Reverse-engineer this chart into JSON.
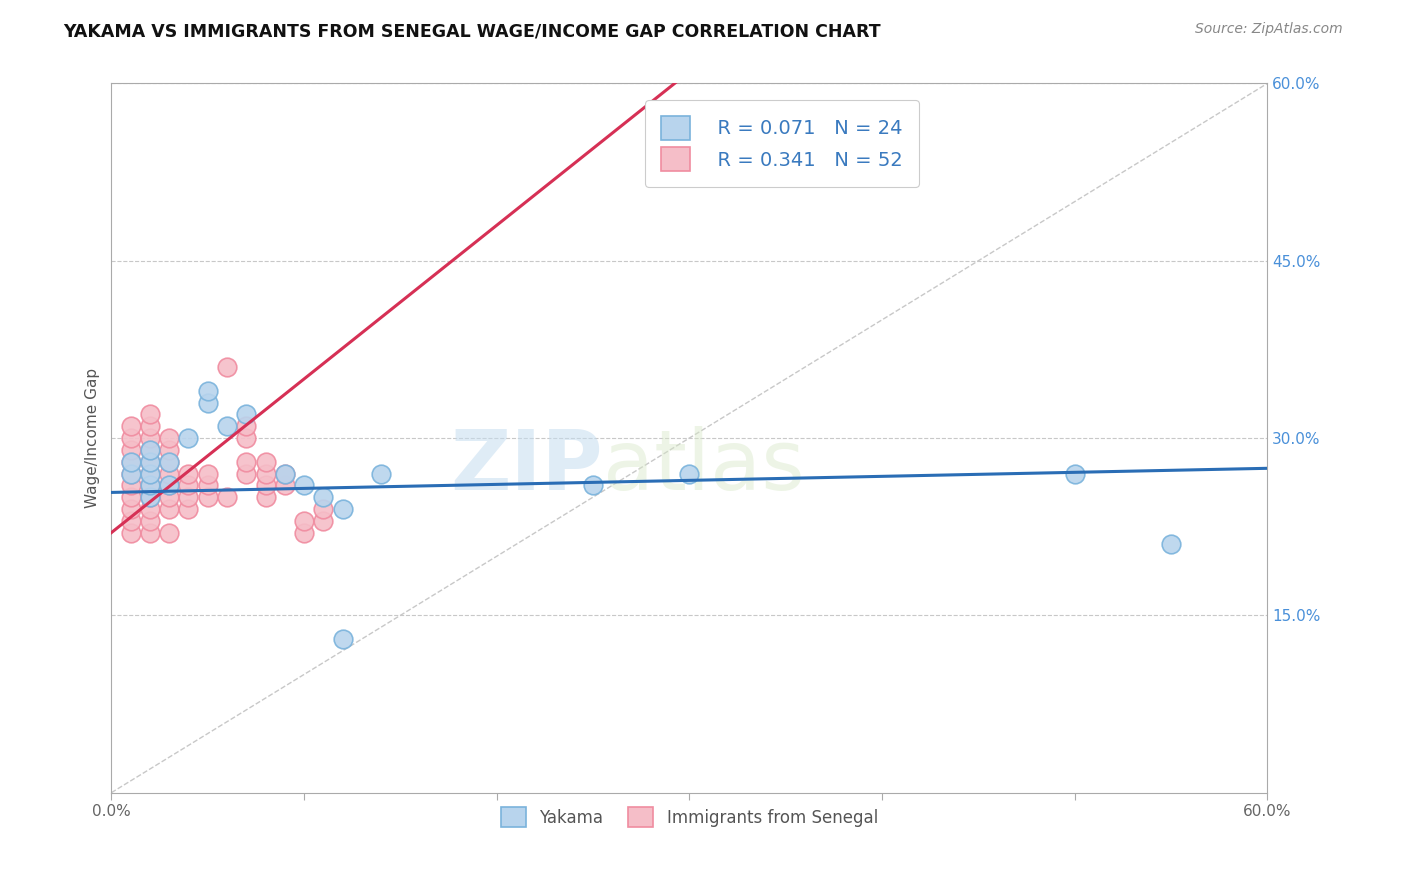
{
  "title": "YAKAMA VS IMMIGRANTS FROM SENEGAL WAGE/INCOME GAP CORRELATION CHART",
  "source": "Source: ZipAtlas.com",
  "ylabel": "Wage/Income Gap",
  "xlim": [
    0.0,
    0.6
  ],
  "ylim": [
    0.0,
    0.6
  ],
  "yticks_right": [
    0.15,
    0.3,
    0.45,
    0.6
  ],
  "ytick_right_labels": [
    "15.0%",
    "30.0%",
    "45.0%",
    "60.0%"
  ],
  "background_color": "#ffffff",
  "grid_color": "#c8c8c8",
  "watermark_zip": "ZIP",
  "watermark_atlas": "atlas",
  "legend_r1": "R = 0.071",
  "legend_n1": "N = 24",
  "legend_r2": "R = 0.341",
  "legend_n2": "N = 52",
  "blue_color": "#7ab3dc",
  "pink_color": "#f08ca0",
  "blue_fill": "#b8d4ed",
  "pink_fill": "#f5bec8",
  "trend_blue": "#2a6db5",
  "trend_pink": "#d63055",
  "ref_line_color": "#c8c8c8",
  "yakama_x": [
    0.01,
    0.01,
    0.02,
    0.02,
    0.02,
    0.02,
    0.02,
    0.03,
    0.03,
    0.04,
    0.05,
    0.05,
    0.06,
    0.07,
    0.09,
    0.1,
    0.11,
    0.12,
    0.12,
    0.14,
    0.25,
    0.3,
    0.5,
    0.55
  ],
  "yakama_y": [
    0.27,
    0.28,
    0.25,
    0.26,
    0.27,
    0.28,
    0.29,
    0.26,
    0.28,
    0.3,
    0.33,
    0.34,
    0.31,
    0.32,
    0.27,
    0.26,
    0.25,
    0.24,
    0.13,
    0.27,
    0.26,
    0.27,
    0.27,
    0.21
  ],
  "senegal_x": [
    0.01,
    0.01,
    0.01,
    0.01,
    0.01,
    0.01,
    0.01,
    0.01,
    0.01,
    0.01,
    0.02,
    0.02,
    0.02,
    0.02,
    0.02,
    0.02,
    0.02,
    0.02,
    0.02,
    0.02,
    0.02,
    0.03,
    0.03,
    0.03,
    0.03,
    0.03,
    0.03,
    0.03,
    0.03,
    0.04,
    0.04,
    0.04,
    0.04,
    0.05,
    0.05,
    0.05,
    0.06,
    0.06,
    0.07,
    0.07,
    0.07,
    0.07,
    0.08,
    0.08,
    0.08,
    0.08,
    0.09,
    0.09,
    0.1,
    0.1,
    0.11,
    0.11
  ],
  "senegal_y": [
    0.22,
    0.23,
    0.24,
    0.25,
    0.26,
    0.27,
    0.28,
    0.29,
    0.3,
    0.31,
    0.22,
    0.23,
    0.24,
    0.25,
    0.26,
    0.27,
    0.28,
    0.29,
    0.3,
    0.31,
    0.32,
    0.22,
    0.24,
    0.25,
    0.26,
    0.27,
    0.28,
    0.29,
    0.3,
    0.24,
    0.25,
    0.26,
    0.27,
    0.25,
    0.26,
    0.27,
    0.25,
    0.36,
    0.27,
    0.28,
    0.3,
    0.31,
    0.25,
    0.26,
    0.27,
    0.28,
    0.26,
    0.27,
    0.22,
    0.23,
    0.23,
    0.24
  ]
}
